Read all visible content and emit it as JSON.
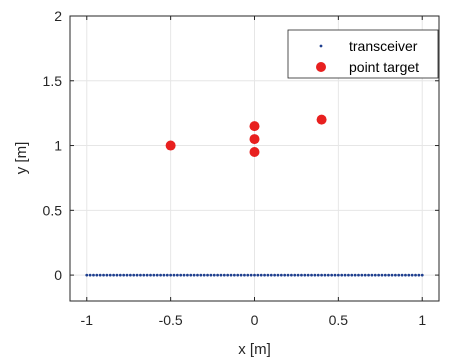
{
  "chart_data": {
    "type": "scatter",
    "xlabel": "x [m]",
    "ylabel": "y [m]",
    "xlim": [
      -1.1,
      1.1
    ],
    "ylim": [
      -0.2,
      2
    ],
    "xticks": [
      -1,
      -0.5,
      0,
      0.5,
      1
    ],
    "xtick_labels": [
      "-1",
      "-0.5",
      "0",
      "0.5",
      "1"
    ],
    "yticks": [
      0,
      0.5,
      1,
      1.5,
      2
    ],
    "ytick_labels": [
      "0",
      "0.5",
      "1",
      "1.5",
      "2"
    ],
    "grid": true,
    "legend_position": "top-right",
    "series": [
      {
        "name": "transceiver",
        "color": "#1f3f8f",
        "marker": "dot",
        "x_start": -1,
        "x_end": 1,
        "x_step": 0.02,
        "y": 0
      },
      {
        "name": "point target",
        "color": "#e8201f",
        "marker": "filled-circle",
        "x": [
          -0.5,
          0,
          0,
          0,
          0.4
        ],
        "y": [
          1.0,
          0.95,
          1.05,
          1.15,
          1.2
        ]
      }
    ]
  }
}
